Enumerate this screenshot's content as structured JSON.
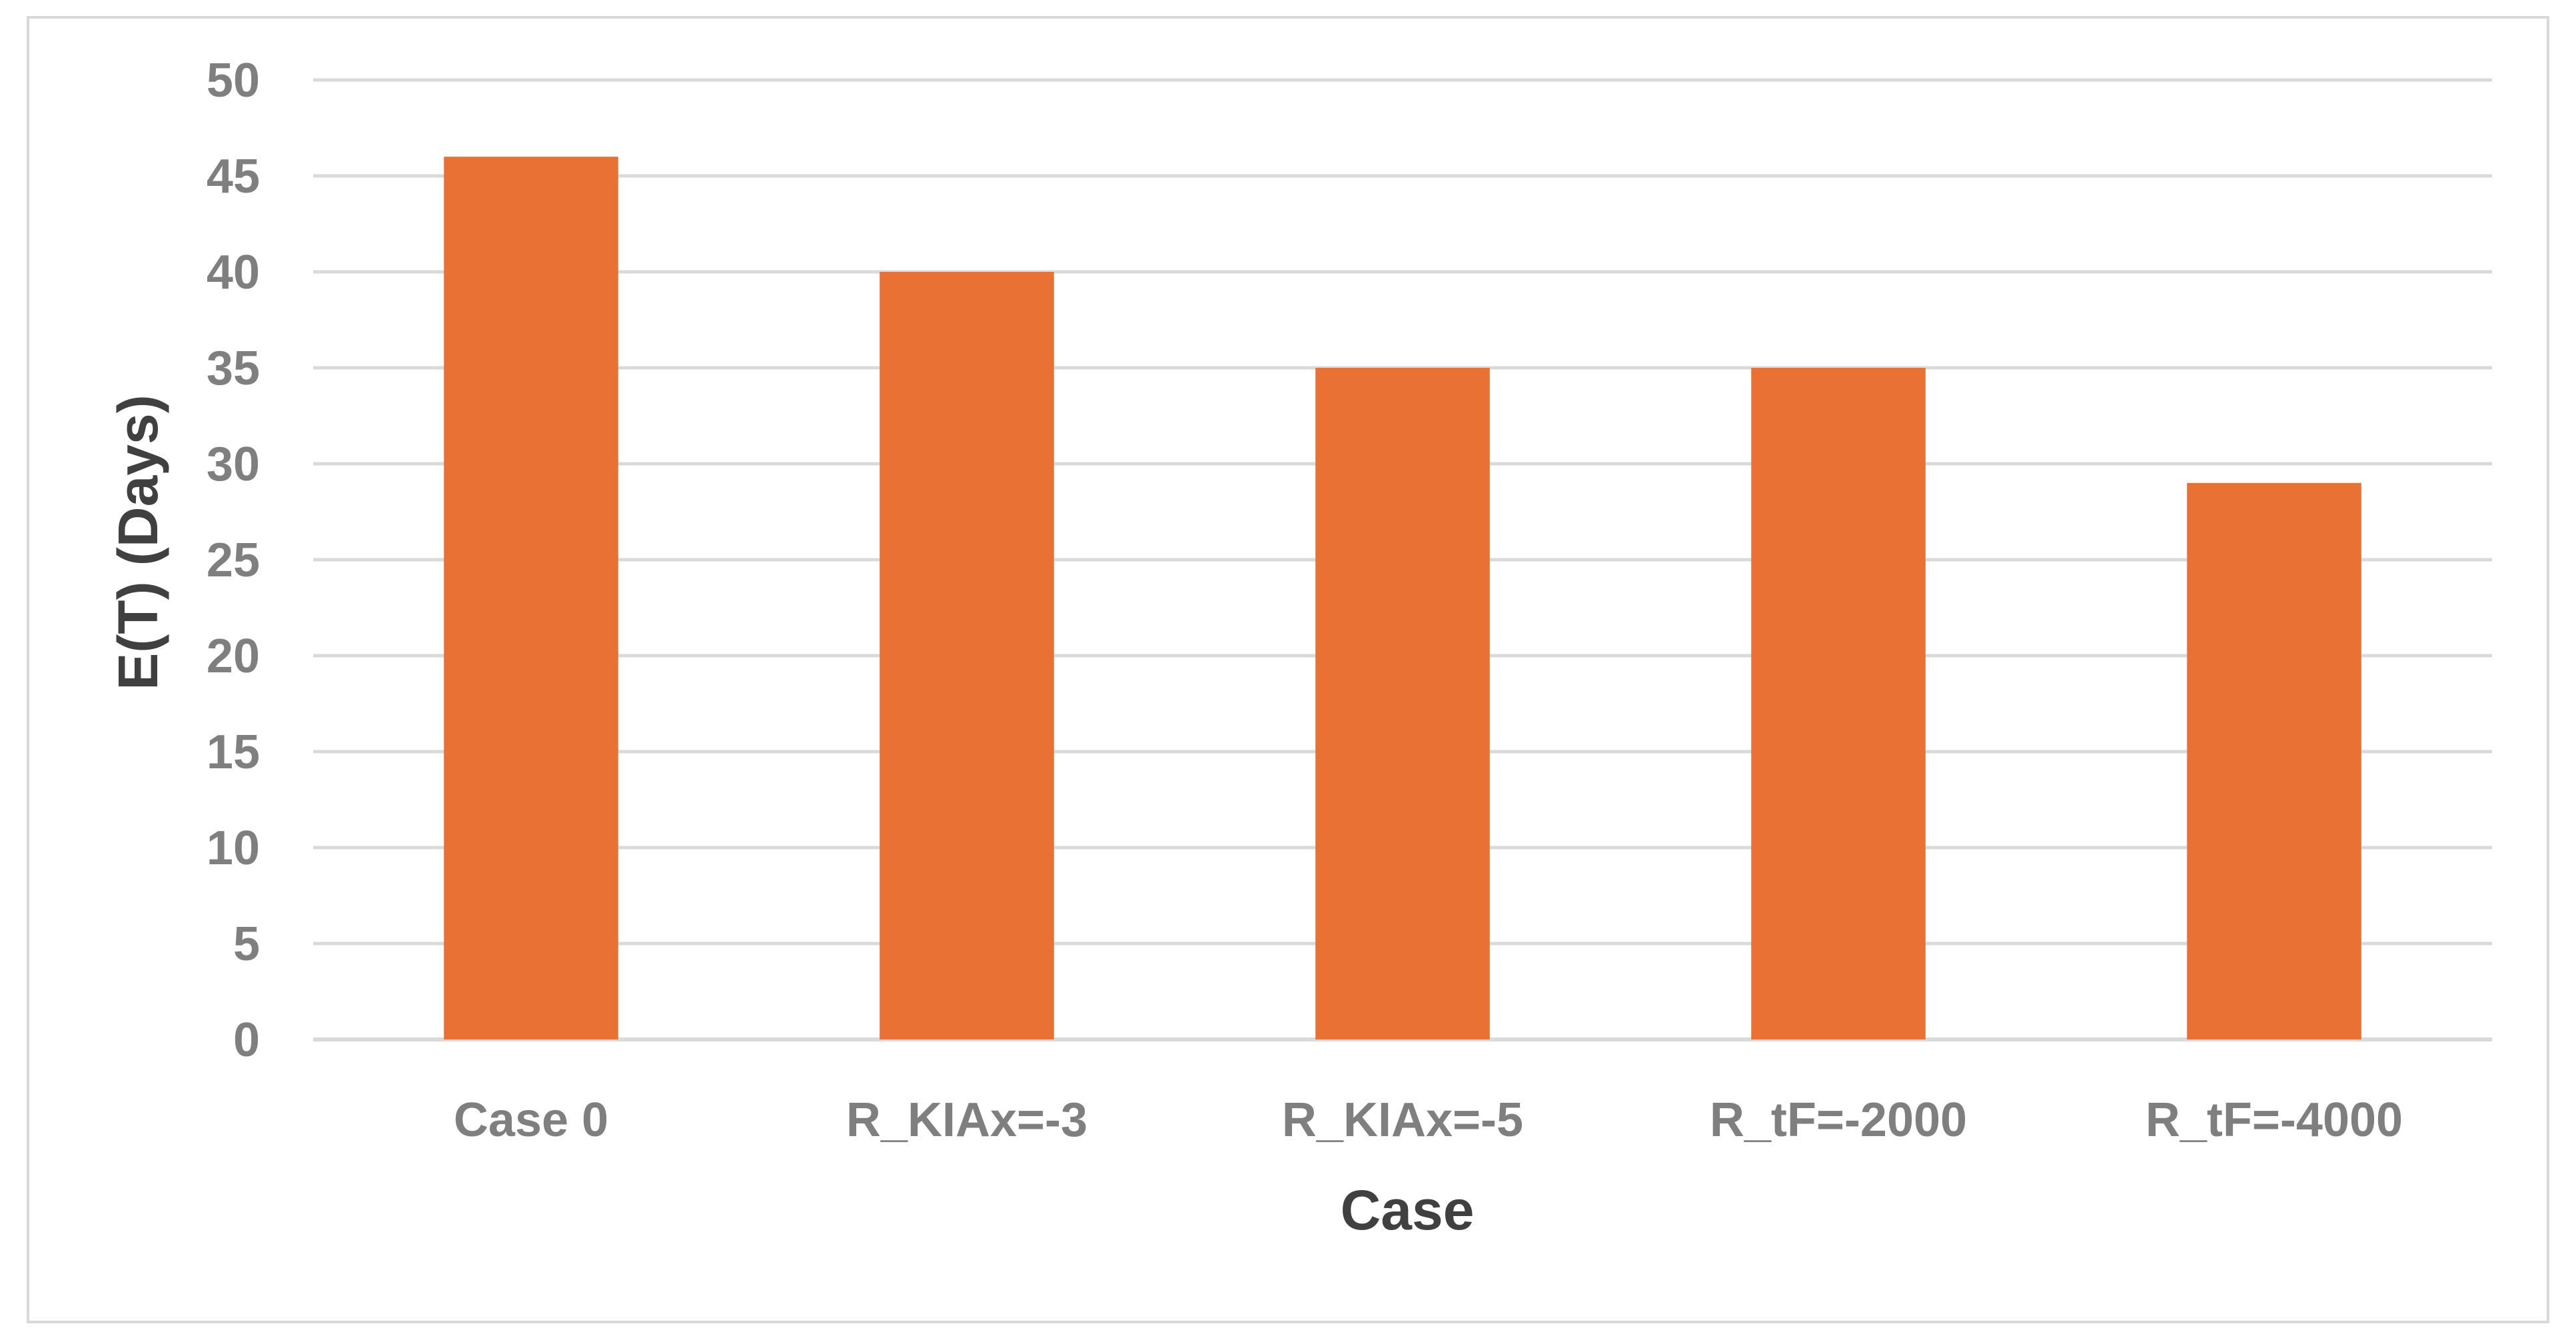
{
  "chart_data": {
    "type": "bar",
    "categories": [
      "Case 0",
      "R_KIAx=-3",
      "R_KIAx=-5",
      "R_tF=-2000",
      "R_tF=-4000"
    ],
    "values": [
      46,
      40,
      35,
      35,
      29
    ],
    "title": "",
    "xlabel": "Case",
    "ylabel": "E(T) (Days)",
    "ylim": [
      0,
      50
    ],
    "yticks": [
      0,
      5,
      10,
      15,
      20,
      25,
      30,
      35,
      40,
      45,
      50
    ],
    "ytick_labels": [
      "0",
      "5",
      "10",
      "15",
      "20",
      "25",
      "30",
      "35",
      "40",
      "45",
      "50"
    ],
    "grid": true,
    "legend": "none",
    "bar_color": "#EA7134",
    "grid_color": "#D9D9D9"
  }
}
